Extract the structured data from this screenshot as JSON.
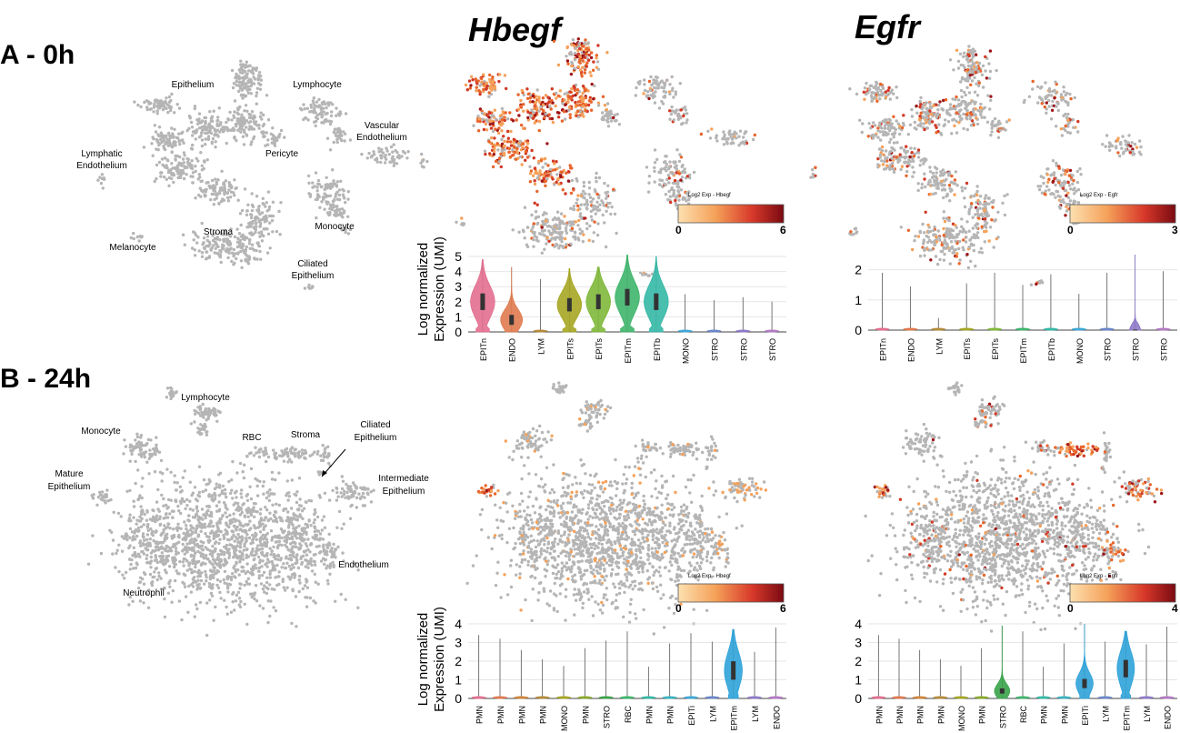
{
  "panels": {
    "a": {
      "label": "A - 0h"
    },
    "b": {
      "label": "B - 24h"
    }
  },
  "gene_titles": [
    "Hbegf",
    "Egfr"
  ],
  "cluster_labels_0h": [
    "Epithelium",
    "Lymphocyte",
    "Vascular",
    "Endothelium",
    "Lymphatic",
    "Endothelium",
    "Pericyte",
    "Stroma",
    "Monocyte",
    "Melanocyte",
    "Ciliated",
    "Epithelium"
  ],
  "cluster_labels_24h": [
    "Lymphocyte",
    "Monocyte",
    "RBC",
    "Stroma",
    "Ciliated",
    "Epithelium",
    "Mature",
    "Epithelium",
    "Intermediate",
    "Epithelium",
    "Endothelium",
    "Neutrophil"
  ],
  "colorbars": [
    {
      "title": "Log2 Exp - Hbegf",
      "min": "0",
      "max": "6"
    },
    {
      "title": "Log2 Exp - Egfr",
      "min": "0",
      "max": "3"
    },
    {
      "title": "Log2 Exp - Hbegf",
      "min": "0",
      "max": "6"
    },
    {
      "title": "Log2 Exp - Egfr",
      "min": "0",
      "max": "4"
    }
  ],
  "ylabel": [
    "Log normalized",
    "Expression (UMI)"
  ],
  "chart_data": [
    {
      "type": "violin",
      "title": "Hbegf 0h",
      "ylim": [
        0,
        5
      ],
      "yticks": [
        0,
        1,
        2,
        3,
        4,
        5
      ],
      "categories": [
        "EPITn",
        "ENDO",
        "LYM",
        "EPITs",
        "EPITs",
        "EPITm",
        "EPITb",
        "MONO",
        "STRO",
        "STRO",
        "STRO"
      ],
      "max": [
        4.8,
        4.3,
        3.5,
        4.2,
        4.3,
        5.1,
        5.0,
        2.5,
        2.1,
        2.3,
        2.0
      ],
      "median": [
        2.0,
        0.8,
        0,
        1.8,
        2.0,
        2.3,
        2.0,
        0,
        0,
        0,
        0
      ],
      "spread": [
        1.0,
        0.6,
        0,
        0.8,
        0.9,
        1.0,
        1.0,
        0,
        0,
        0,
        0
      ],
      "colors": [
        "#e36f8f",
        "#e07a4f",
        "#b58a3a",
        "#a6a624",
        "#7fb83a",
        "#3fb56b",
        "#35b8a6",
        "#3fa7d6",
        "#6b86c9",
        "#8f7ac9",
        "#b37ac4"
      ]
    },
    {
      "type": "violin",
      "title": "Egfr 0h",
      "ylim": [
        0,
        2.5
      ],
      "yticks": [
        0,
        1,
        2
      ],
      "categories": [
        "EPITn",
        "ENDO",
        "LYM",
        "EPITs",
        "EPITs",
        "EPITm",
        "EPITb",
        "MONO",
        "STRO",
        "STRO",
        "STRO"
      ],
      "max": [
        1.9,
        1.45,
        0.4,
        1.55,
        1.9,
        1.5,
        1.85,
        1.2,
        1.9,
        2.5,
        1.95
      ],
      "median": [
        0,
        0,
        0,
        0,
        0,
        0,
        0,
        0,
        0,
        0,
        0
      ],
      "spread": [
        0,
        0,
        0,
        0,
        0,
        0,
        0,
        0,
        0,
        0.03,
        0
      ],
      "colors": [
        "#e36f8f",
        "#e07a4f",
        "#b58a3a",
        "#a6a624",
        "#7fb83a",
        "#3fb56b",
        "#35b8a6",
        "#3fa7d6",
        "#6b86c9",
        "#8f7ac9",
        "#b37ac4"
      ]
    },
    {
      "type": "violin",
      "title": "Hbegf 24h",
      "ylim": [
        0,
        4
      ],
      "yticks": [
        0,
        1,
        2,
        3,
        4
      ],
      "categories": [
        "PMN",
        "PMN",
        "PMN",
        "PMN",
        "MONO",
        "PMN",
        "STRO",
        "RBC",
        "PMN",
        "PMN",
        "EPITi",
        "LYM",
        "EPITm",
        "LYM",
        "ENDO"
      ],
      "max": [
        3.4,
        3.2,
        2.6,
        2.1,
        1.75,
        2.7,
        3.1,
        3.6,
        1.7,
        2.95,
        3.5,
        3.05,
        3.7,
        2.5,
        3.8
      ],
      "median": [
        0,
        0,
        0,
        0,
        0,
        0,
        0,
        0,
        0,
        0,
        0,
        0,
        1.5,
        0,
        0
      ],
      "spread": [
        0,
        0,
        0,
        0,
        0,
        0,
        0,
        0,
        0,
        0,
        0,
        0,
        0.9,
        0,
        0
      ],
      "colors": [
        "#e36f8f",
        "#e07a4f",
        "#d0853a",
        "#b58a3a",
        "#a6a624",
        "#8aa82a",
        "#3aa34a",
        "#3fb56b",
        "#35b8a6",
        "#3ab3c2",
        "#3fa7d6",
        "#6b86c9",
        "#2fa3d9",
        "#8f7ac9",
        "#b37ac4"
      ]
    },
    {
      "type": "violin",
      "title": "Egfr 24h",
      "ylim": [
        0,
        4
      ],
      "yticks": [
        0,
        1,
        2,
        3,
        4
      ],
      "categories": [
        "PMN",
        "PMN",
        "PMN",
        "PMN",
        "MONO",
        "PMN",
        "STRO",
        "RBC",
        "PMN",
        "PMN",
        "EPITi",
        "LYM",
        "EPITm",
        "LYM",
        "ENDO"
      ],
      "max": [
        3.4,
        3.2,
        2.6,
        2.1,
        1.75,
        2.7,
        3.9,
        3.6,
        1.7,
        2.95,
        4.0,
        3.05,
        3.6,
        2.9,
        3.85
      ],
      "median": [
        0,
        0,
        0,
        0,
        0,
        0,
        0.4,
        0,
        0,
        0,
        0.8,
        0,
        1.6,
        0,
        0
      ],
      "spread": [
        0,
        0,
        0,
        0,
        0,
        0,
        0.25,
        0,
        0,
        0,
        0.45,
        0,
        0.85,
        0,
        0
      ],
      "colors": [
        "#e36f8f",
        "#e07a4f",
        "#d0853a",
        "#b58a3a",
        "#a6a624",
        "#8aa82a",
        "#3aa34a",
        "#3fb56b",
        "#35b8a6",
        "#3ab3c2",
        "#2fa3d9",
        "#6b86c9",
        "#2fa3d9",
        "#8f7ac9",
        "#b37ac4"
      ]
    }
  ]
}
